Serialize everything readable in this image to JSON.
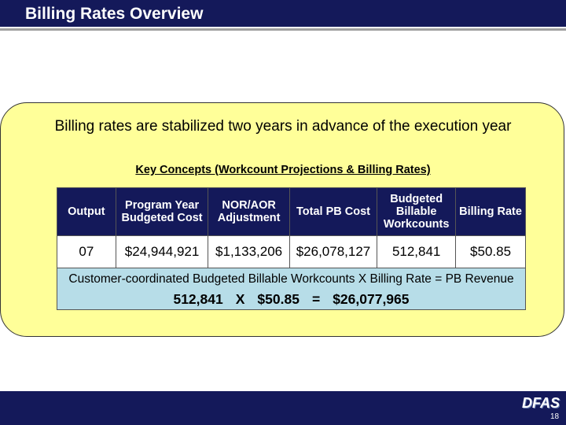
{
  "header": {
    "title": "Billing Rates Overview"
  },
  "intro": "Billing rates are stabilized two years in advance of the execution year",
  "subtitle": "Key Concepts (Workcount Projections & Billing Rates)",
  "table": {
    "headers": [
      "Output",
      "Program Year Budgeted Cost",
      "NOR/AOR Adjustment",
      "Total PB Cost",
      "Budgeted Billable Workcounts",
      "Billing Rate"
    ],
    "rows": [
      [
        "07",
        "$24,944,921",
        "$1,133,206",
        "$26,078,127",
        "512,841",
        "$50.85"
      ]
    ],
    "formula": {
      "text": "Customer-coordinated Budgeted Billable Workcounts X Billing Rate = PB Revenue",
      "equation": [
        "512,841",
        "X",
        "$50.85",
        "=",
        "$26,077,965"
      ]
    }
  },
  "footer": {
    "logo": "DFAS",
    "page": "18"
  }
}
